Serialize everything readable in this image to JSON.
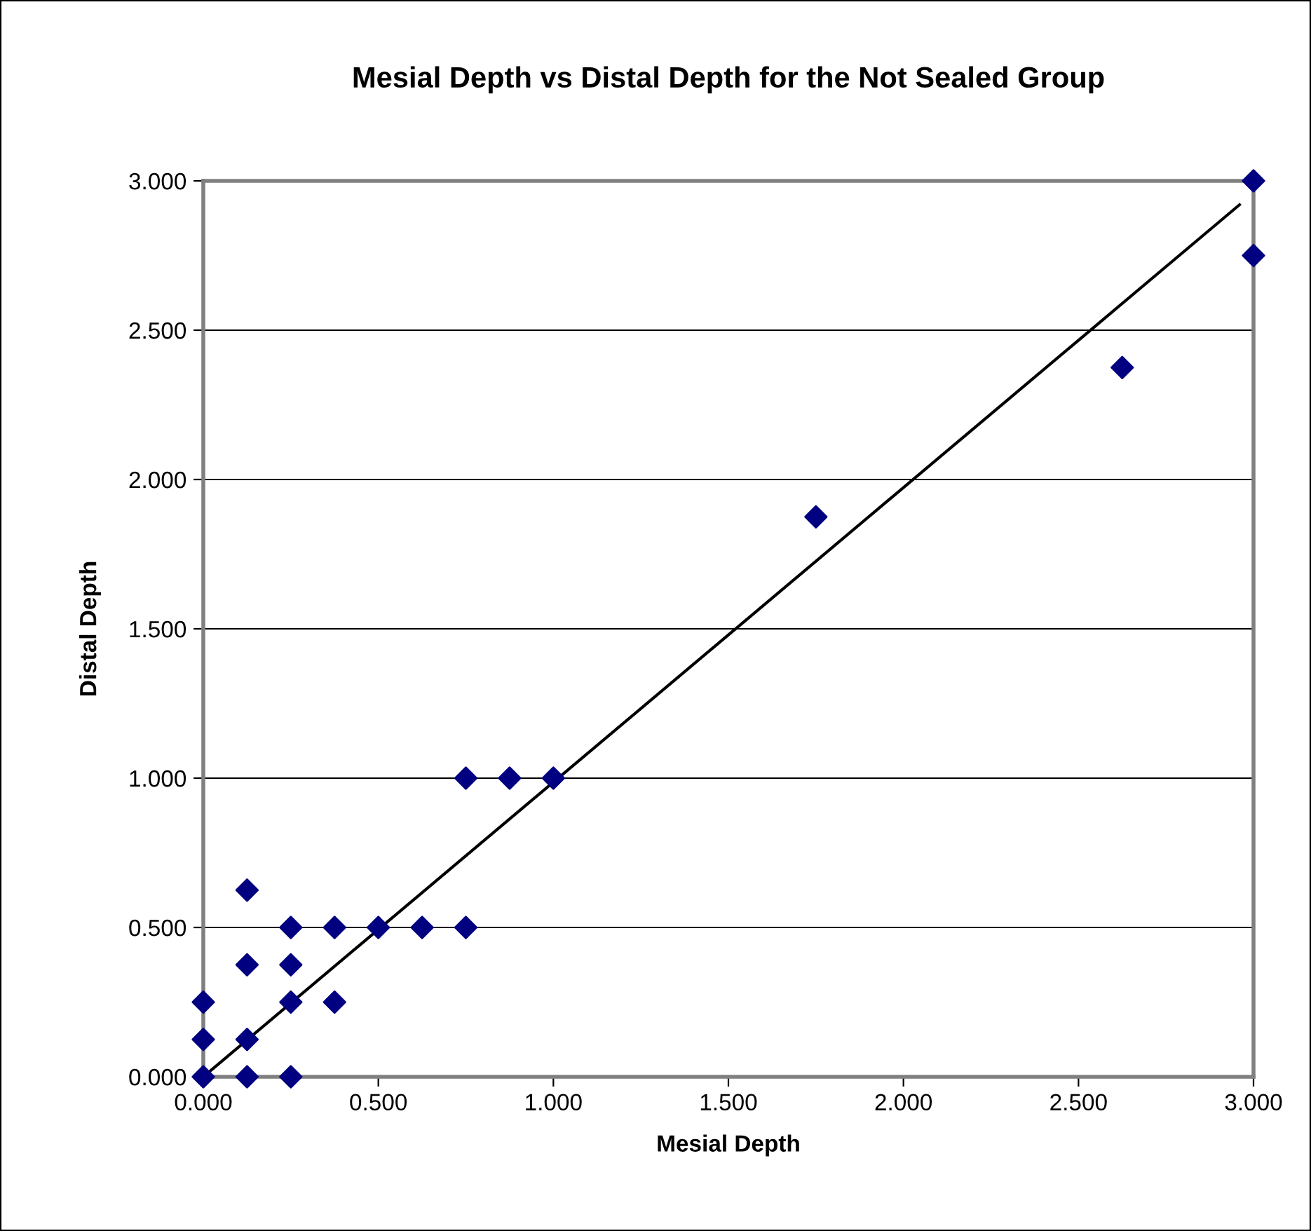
{
  "chart_data": {
    "type": "scatter",
    "title": "Mesial Depth vs Distal Depth for the Not Sealed Group",
    "xlabel": "Mesial Depth",
    "ylabel": "Distal Depth",
    "xlim": [
      0,
      3
    ],
    "ylim": [
      0,
      3
    ],
    "xticks": [
      {
        "value": 0,
        "label": "0.000"
      },
      {
        "value": 0.5,
        "label": "0.500"
      },
      {
        "value": 1,
        "label": "1.000"
      },
      {
        "value": 1.5,
        "label": "1.500"
      },
      {
        "value": 2,
        "label": "2.000"
      },
      {
        "value": 2.5,
        "label": "2.500"
      },
      {
        "value": 3,
        "label": "3.000"
      }
    ],
    "yticks": [
      {
        "value": 0,
        "label": "0.000"
      },
      {
        "value": 0.5,
        "label": "0.500"
      },
      {
        "value": 1,
        "label": "1.000"
      },
      {
        "value": 1.5,
        "label": "1.500"
      },
      {
        "value": 2,
        "label": "2.000"
      },
      {
        "value": 2.5,
        "label": "2.500"
      },
      {
        "value": 3,
        "label": "3.000"
      }
    ],
    "grid": "y",
    "legend": false,
    "series": [
      {
        "marker": "diamond",
        "color": "#000080",
        "x": [
          0,
          0,
          0,
          0.125,
          0.125,
          0.125,
          0.125,
          0.25,
          0.25,
          0.25,
          0.25,
          0.375,
          0.375,
          0.5,
          0.625,
          0.75,
          0.75,
          0.875,
          1,
          1.75,
          2.625,
          3,
          3
        ],
        "values": [
          0,
          0.125,
          0.25,
          0,
          0.125,
          0.375,
          0.625,
          0,
          0.25,
          0.375,
          0.5,
          0.25,
          0.5,
          0.5,
          0.5,
          0.5,
          1,
          1,
          1,
          1.875,
          2.375,
          2.75,
          3
        ]
      },
      {
        "type": "line",
        "marker": "none",
        "color": "#000000",
        "x": [
          0,
          2.96
        ],
        "values": [
          0,
          2.92
        ]
      }
    ]
  }
}
